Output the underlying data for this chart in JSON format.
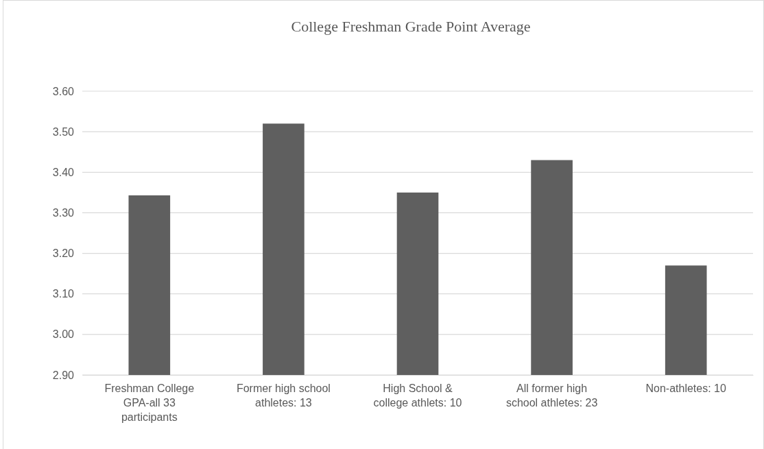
{
  "chart_data": {
    "type": "bar",
    "title": "College Freshman Grade Point Average",
    "categories": [
      "Freshman College GPA-all 33 participants",
      "Former high school athletes: 13",
      "High School & college athlets: 10",
      "All former high school athletes: 23",
      "Non-athletes: 10"
    ],
    "values": [
      3.343,
      3.52,
      3.35,
      3.43,
      3.17
    ],
    "color": "#5f5f5f",
    "ylim": [
      2.9,
      3.6
    ],
    "yticks": [
      {
        "value": 2.9,
        "label": "2.90"
      },
      {
        "value": 3.0,
        "label": "3.00"
      },
      {
        "value": 3.1,
        "label": "3.10"
      },
      {
        "value": 3.2,
        "label": "3.20"
      },
      {
        "value": 3.3,
        "label": "3.30"
      },
      {
        "value": 3.4,
        "label": "3.40"
      },
      {
        "value": 3.5,
        "label": "3.50"
      },
      {
        "value": 3.6,
        "label": "3.60"
      }
    ],
    "grid": "y"
  }
}
